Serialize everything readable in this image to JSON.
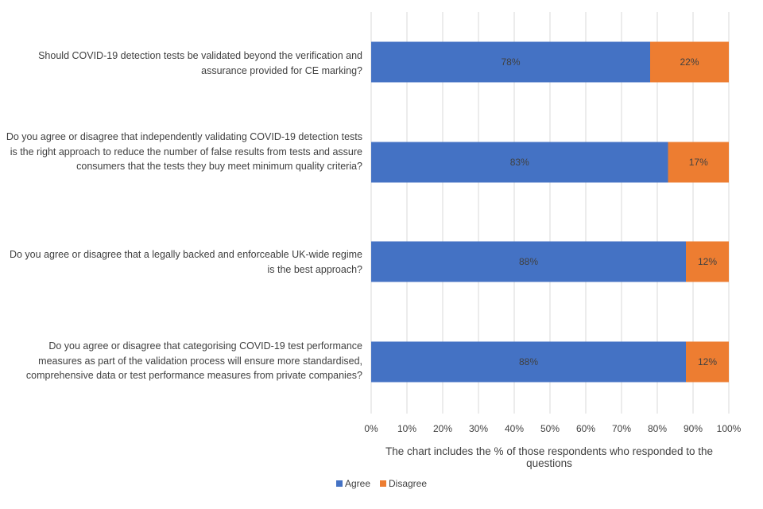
{
  "chart_data": {
    "type": "bar",
    "orientation": "horizontal",
    "stacked": true,
    "categories": [
      "Should COVID-19 detection tests be validated beyond the verification and assurance provided for CE marking?",
      "Do you agree or disagree that independently validating COVID-19 detection tests is the right approach to reduce the number of false results from tests and assure consumers that the tests they buy meet minimum quality criteria?",
      "Do you agree or disagree that a legally backed and enforceable UK-wide regime is the best approach?",
      "Do you agree or disagree that categorising COVID-19 test performance measures as part of the validation process will ensure more standardised, comprehensive data or test performance measures from private companies?"
    ],
    "series": [
      {
        "name": "Agree",
        "values": [
          78,
          83,
          88,
          88
        ],
        "labels": [
          "78%",
          "83%",
          "88%",
          "88%"
        ],
        "color": "#4472C4"
      },
      {
        "name": "Disagree",
        "values": [
          22,
          17,
          12,
          12
        ],
        "labels": [
          "22%",
          "17%",
          "12%",
          "12%"
        ],
        "color": "#ED7D31"
      }
    ],
    "xlim": [
      0,
      100
    ],
    "xticks": [
      "0%",
      "10%",
      "20%",
      "30%",
      "40%",
      "50%",
      "60%",
      "70%",
      "80%",
      "90%",
      "100%"
    ],
    "xlabel": "The chart includes the % of those respondents who responded to the questions",
    "grid": true,
    "legend_position": "bottom"
  }
}
